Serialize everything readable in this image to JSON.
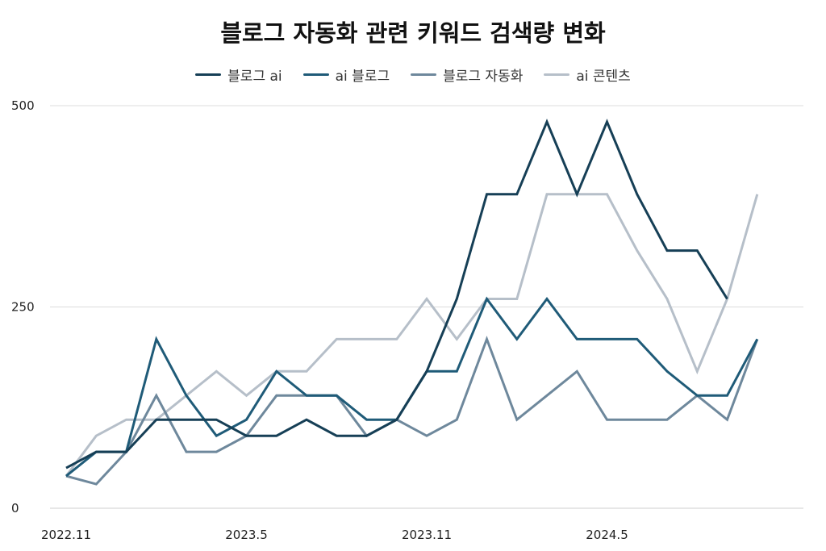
{
  "chart_data": {
    "type": "line",
    "title": "블로그 자동화 관련 키워드 검색량 변화",
    "xlabel": "",
    "ylabel": "",
    "ylim": [
      0,
      500
    ],
    "yticks": [
      0,
      250,
      500
    ],
    "x_tick_labels": [
      {
        "label": "2022.11",
        "index": 0
      },
      {
        "label": "2023.5",
        "index": 6
      },
      {
        "label": "2023.11",
        "index": 12
      },
      {
        "label": "2024.5",
        "index": 18
      }
    ],
    "categories": [
      "2022.11",
      "2022.12",
      "2023.1",
      "2023.2",
      "2023.3",
      "2023.4",
      "2023.5",
      "2023.6",
      "2023.7",
      "2023.8",
      "2023.9",
      "2023.10",
      "2023.11",
      "2023.12",
      "2024.1",
      "2024.2",
      "2024.3",
      "2024.4",
      "2024.5",
      "2024.6",
      "2024.7",
      "2024.8",
      "2024.9",
      "2024.10",
      "2024.11"
    ],
    "series": [
      {
        "name": "블로그 ai",
        "color": "#163f56",
        "values": [
          50,
          70,
          70,
          110,
          110,
          110,
          90,
          90,
          110,
          90,
          90,
          110,
          170,
          260,
          390,
          390,
          480,
          390,
          480,
          390,
          320,
          320,
          260,
          null,
          null
        ]
      },
      {
        "name": "ai 블로그",
        "color": "#1f5b78",
        "values": [
          40,
          70,
          70,
          210,
          140,
          90,
          110,
          170,
          140,
          140,
          110,
          110,
          170,
          170,
          260,
          210,
          260,
          210,
          210,
          210,
          170,
          140,
          140,
          210,
          null
        ]
      },
      {
        "name": "블로그 자동화",
        "color": "#6e889c",
        "values": [
          40,
          30,
          70,
          140,
          70,
          70,
          90,
          140,
          140,
          140,
          90,
          110,
          90,
          110,
          210,
          110,
          140,
          170,
          110,
          110,
          110,
          140,
          110,
          210,
          null
        ]
      },
      {
        "name": "ai 콘텐츠",
        "color": "#b6bfc9",
        "values": [
          40,
          90,
          110,
          110,
          140,
          170,
          140,
          170,
          170,
          210,
          210,
          210,
          260,
          210,
          260,
          260,
          390,
          390,
          390,
          320,
          260,
          170,
          260,
          390,
          null
        ]
      }
    ],
    "legend_position": "top-center",
    "grid": true
  }
}
